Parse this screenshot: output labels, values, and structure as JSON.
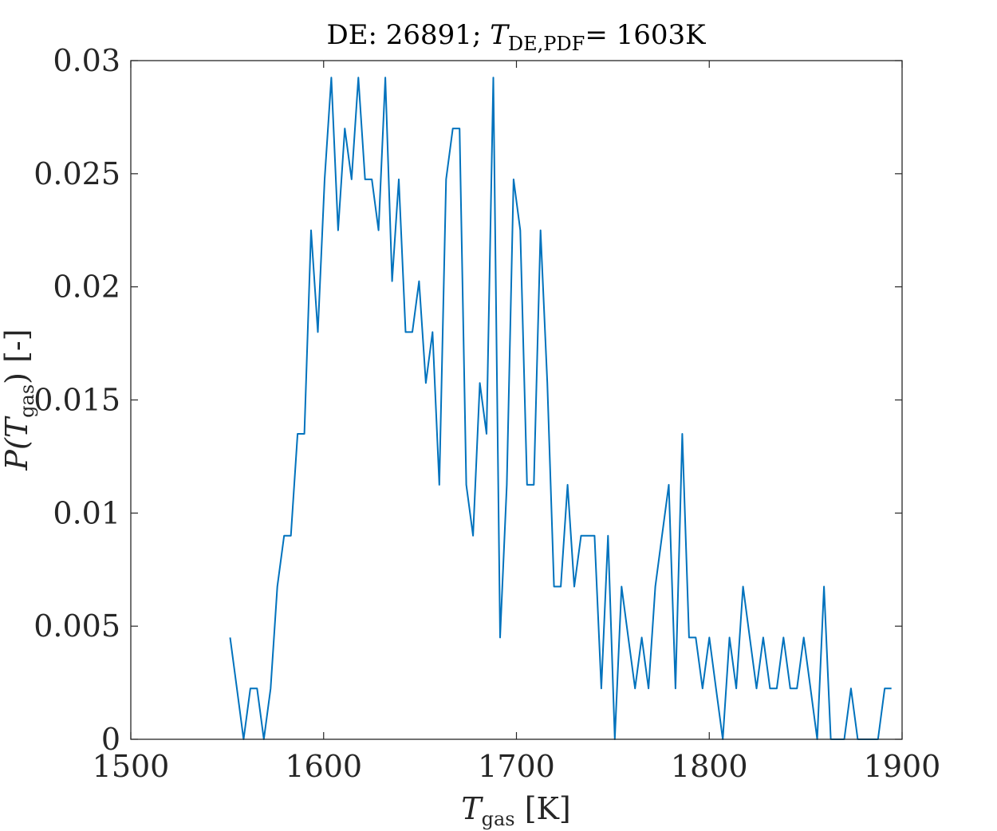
{
  "chart_data": {
    "type": "line",
    "title": {
      "prefix": "DE: 26891; ",
      "symbol": "T",
      "subscript": "DE,PDF",
      "suffix": "= 1603K"
    },
    "xlabel": {
      "symbol": "T",
      "subscript": "gas",
      "unit": " [K]"
    },
    "ylabel": {
      "before": "P(",
      "symbol": "T",
      "subscript": "gas",
      "after": ") [-]"
    },
    "xlim": [
      1500,
      1900
    ],
    "ylim": [
      0,
      0.03
    ],
    "xticks": [
      "1500",
      "1600",
      "1700",
      "1800",
      "1900"
    ],
    "yticks": [
      "0",
      "0.005",
      "0.01",
      "0.015",
      "0.02",
      "0.025",
      "0.03"
    ],
    "grid": false,
    "series": [
      {
        "color": "#0072BD",
        "x": [
          1551.5,
          1555,
          1558.5,
          1562,
          1565.5,
          1569,
          1572.5,
          1576,
          1579.5,
          1583,
          1586.5,
          1590,
          1593.5,
          1597,
          1600.5,
          1604,
          1607.5,
          1611,
          1614.5,
          1618,
          1621.5,
          1625,
          1628.5,
          1632,
          1635.5,
          1639,
          1642.5,
          1646,
          1649.5,
          1653,
          1656.5,
          1660,
          1663.5,
          1667,
          1670.5,
          1674,
          1677.5,
          1681,
          1684.5,
          1688,
          1691.5,
          1695,
          1698.5,
          1702,
          1705.5,
          1709,
          1712.5,
          1716,
          1719.5,
          1723,
          1726.5,
          1730,
          1733.5,
          1737,
          1740.5,
          1744,
          1747.5,
          1751,
          1754.5,
          1758,
          1761.5,
          1765,
          1768.5,
          1772,
          1775.5,
          1779,
          1782.5,
          1786,
          1789.5,
          1793,
          1796.5,
          1800,
          1803.5,
          1807,
          1810.5,
          1814,
          1817.5,
          1821,
          1824.5,
          1828,
          1831.5,
          1835,
          1838.5,
          1842,
          1845.5,
          1849,
          1852.5,
          1856,
          1859.5,
          1863,
          1866.5,
          1870,
          1873.5,
          1877,
          1880.5,
          1884,
          1887.5,
          1891,
          1894.5
        ],
        "y": [
          0.0045,
          0.00225,
          0,
          0.00225,
          0.00225,
          0,
          0.00225,
          0.00675,
          0.009,
          0.009,
          0.0135,
          0.0135,
          0.0225,
          0.018,
          0.02475,
          0.02925,
          0.0225,
          0.027,
          0.02475,
          0.02925,
          0.02475,
          0.02475,
          0.0225,
          0.02925,
          0.02025,
          0.02475,
          0.018,
          0.018,
          0.02025,
          0.01575,
          0.018,
          0.01125,
          0.02475,
          0.027,
          0.027,
          0.01125,
          0.009,
          0.01575,
          0.0135,
          0.02925,
          0.0045,
          0.01125,
          0.02475,
          0.0225,
          0.01125,
          0.01125,
          0.0225,
          0.01575,
          0.00675,
          0.00675,
          0.01125,
          0.00675,
          0.009,
          0.009,
          0.009,
          0.00225,
          0.009,
          0,
          0.00675,
          0.0045,
          0.00225,
          0.0045,
          0.00225,
          0.00675,
          0.009,
          0.01125,
          0.00225,
          0.0135,
          0.0045,
          0.0045,
          0.00225,
          0.0045,
          0.00225,
          0,
          0.0045,
          0.00225,
          0.00675,
          0.0045,
          0.00225,
          0.0045,
          0.00225,
          0.00225,
          0.0045,
          0.00225,
          0.00225,
          0.0045,
          0.00225,
          0,
          0.00675,
          0,
          0,
          0,
          0.00225,
          0,
          0,
          0,
          0,
          0.00225,
          0.00225
        ]
      }
    ]
  }
}
